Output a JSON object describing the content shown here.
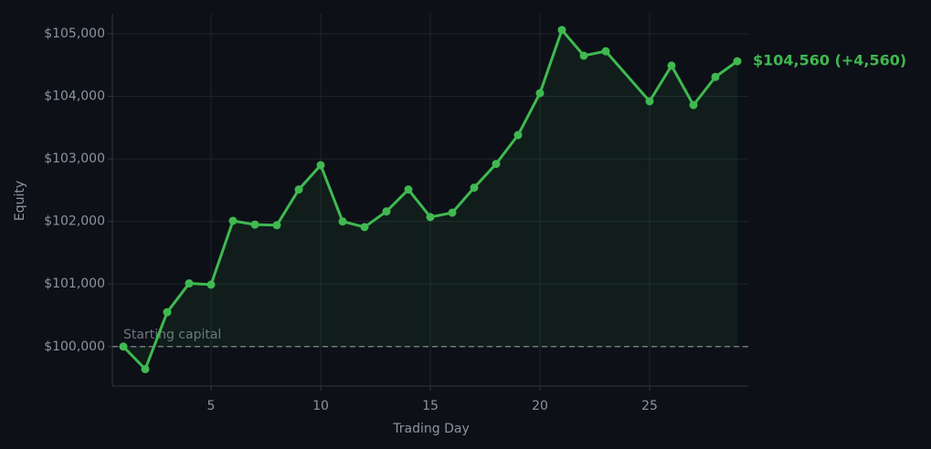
{
  "chart_data": {
    "type": "line",
    "x_label": "Trading Day",
    "y_label": "Equity",
    "x": [
      1,
      2,
      3,
      4,
      5,
      6,
      7,
      8,
      9,
      10,
      11,
      12,
      13,
      14,
      15,
      16,
      17,
      18,
      19,
      20,
      21,
      22,
      23,
      25,
      26,
      27,
      28,
      29
    ],
    "series": [
      {
        "name": "Equity",
        "color": "#3fb950",
        "values": [
          100000,
          99640,
          100550,
          101010,
          100990,
          102010,
          101950,
          101940,
          102510,
          102900,
          102000,
          101910,
          102160,
          102510,
          102070,
          102140,
          102540,
          102920,
          103380,
          104050,
          105060,
          104650,
          104720,
          103920,
          104490,
          103860,
          104310,
          104560
        ]
      }
    ],
    "end_label": "$104,560  (+4,560)",
    "baseline": 100000,
    "baseline_label": "Starting capital",
    "xlim": [
      0.5,
      29.5
    ],
    "xticks": [
      5,
      10,
      15,
      20,
      25
    ],
    "ylim": [
      99370,
      105320
    ],
    "yticks": [
      {
        "value": 100000,
        "label": "$100,000"
      },
      {
        "value": 101000,
        "label": "$101,000"
      },
      {
        "value": 102000,
        "label": "$102,000"
      },
      {
        "value": 103000,
        "label": "$103,000"
      },
      {
        "value": 104000,
        "label": "$104,000"
      },
      {
        "value": 105000,
        "label": "$105,000"
      }
    ],
    "grid": true
  }
}
